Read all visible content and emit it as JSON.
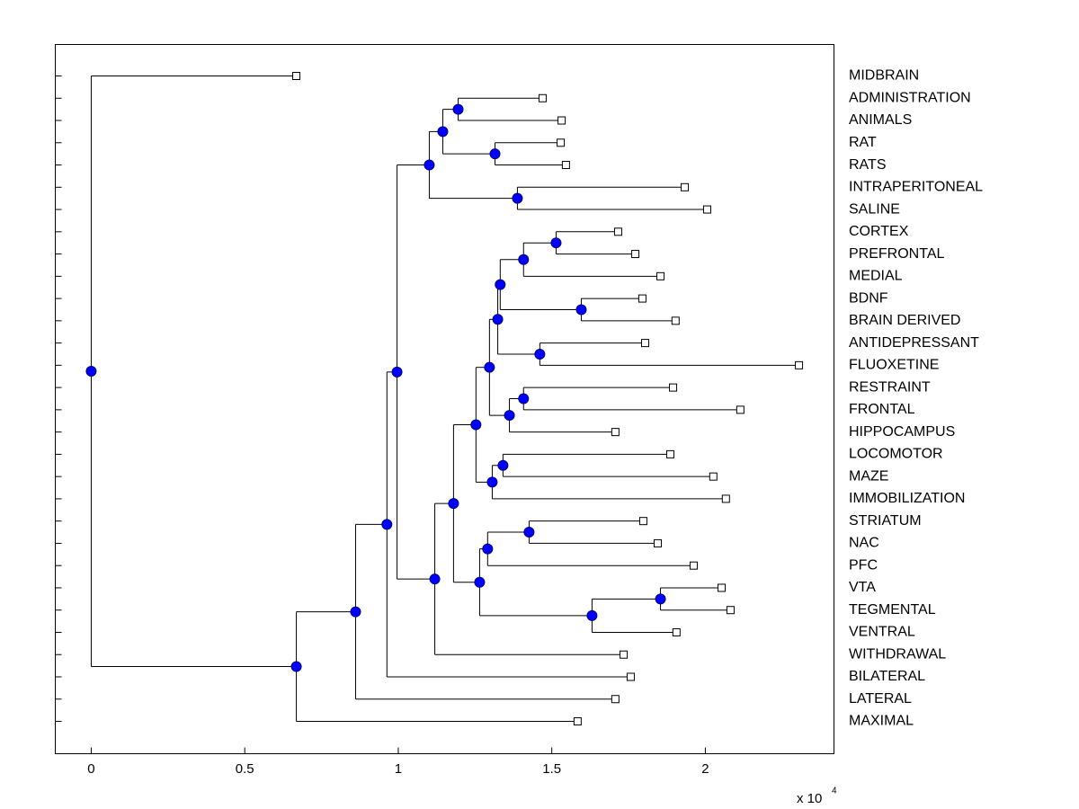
{
  "chart_data": {
    "type": "dendrogram",
    "xlim": [
      -0.117,
      2.419
    ],
    "xticks": [
      0,
      0.5,
      1,
      1.5,
      2
    ],
    "offset_text": "x 10",
    "offset_exponent": "4",
    "node_color": "#0000ff",
    "tree": {
      "x": 0,
      "children": [
        {
          "label": "MIDBRAIN",
          "x": 0.668
        },
        {
          "x": 0.668,
          "children": [
            {
              "x": 0.861,
              "children": [
                {
                  "x": 0.963,
                  "children": [
                    {
                      "x": 0.996,
                      "children": [
                        {
                          "x": 1.101,
                          "children": [
                            {
                              "x": 1.145,
                              "children": [
                                {
                                  "x": 1.195,
                                  "children": [
                                    {
                                      "label": "ADMINISTRATION",
                                      "x": 1.47
                                    },
                                    {
                                      "label": "ANIMALS",
                                      "x": 1.532
                                    }
                                  ]
                                },
                                {
                                  "x": 1.315,
                                  "children": [
                                    {
                                      "label": "RAT",
                                      "x": 1.529
                                    },
                                    {
                                      "label": "RATS",
                                      "x": 1.546
                                    }
                                  ]
                                }
                              ]
                            },
                            {
                              "x": 1.388,
                              "children": [
                                {
                                  "label": "INTRAPERITONEAL",
                                  "x": 1.933
                                },
                                {
                                  "label": "SALINE",
                                  "x": 2.006
                                }
                              ]
                            }
                          ]
                        },
                        {
                          "x": 1.119,
                          "children": [
                            {
                              "x": 1.18,
                              "children": [
                                {
                                  "x": 1.253,
                                  "children": [
                                    {
                                      "x": 1.297,
                                      "children": [
                                        {
                                          "x": 1.324,
                                          "children": [
                                            {
                                              "x": 1.332,
                                              "children": [
                                                {
                                                  "x": 1.408,
                                                  "children": [
                                                    {
                                                      "x": 1.514,
                                                      "children": [
                                                        {
                                                          "label": "CORTEX",
                                                          "x": 1.716
                                                        },
                                                        {
                                                          "label": "PREFRONTAL",
                                                          "x": 1.772
                                                        }
                                                      ]
                                                    },
                                                    {
                                                      "label": "MEDIAL",
                                                      "x": 1.854
                                                    }
                                                  ]
                                                },
                                                {
                                                  "x": 1.596,
                                                  "children": [
                                                    {
                                                      "label": "BDNF",
                                                      "x": 1.795
                                                    },
                                                    {
                                                      "label": "BRAIN DERIVED",
                                                      "x": 1.903
                                                    }
                                                  ]
                                                }
                                              ]
                                            },
                                            {
                                              "x": 1.461,
                                              "children": [
                                                {
                                                  "label": "ANTIDEPRESSANT",
                                                  "x": 1.804
                                                },
                                                {
                                                  "label": "FLUOXETINE",
                                                  "x": 2.305
                                                }
                                              ]
                                            }
                                          ]
                                        },
                                        {
                                          "x": 1.362,
                                          "children": [
                                            {
                                              "x": 1.408,
                                              "children": [
                                                {
                                                  "label": "RESTRAINT",
                                                  "x": 1.895
                                                },
                                                {
                                                  "label": "FRONTAL",
                                                  "x": 2.114
                                                }
                                              ]
                                            },
                                            {
                                              "label": "HIPPOCAMPUS",
                                              "x": 1.707
                                            }
                                          ]
                                        }
                                      ]
                                    },
                                    {
                                      "x": 1.306,
                                      "children": [
                                        {
                                          "x": 1.341,
                                          "children": [
                                            {
                                              "label": "LOCOMOTOR",
                                              "x": 1.886
                                            },
                                            {
                                              "label": "MAZE",
                                              "x": 2.026
                                            }
                                          ]
                                        },
                                        {
                                          "label": "IMMOBILIZATION",
                                          "x": 2.067
                                        }
                                      ]
                                    }
                                  ]
                                },
                                {
                                  "x": 1.265,
                                  "children": [
                                    {
                                      "x": 1.291,
                                      "children": [
                                        {
                                          "x": 1.426,
                                          "children": [
                                            {
                                              "label": "STRIATUM",
                                              "x": 1.798
                                            },
                                            {
                                              "label": "NAC",
                                              "x": 1.845
                                            }
                                          ]
                                        },
                                        {
                                          "label": "PFC",
                                          "x": 1.962
                                        }
                                      ]
                                    },
                                    {
                                      "x": 1.631,
                                      "children": [
                                        {
                                          "x": 1.854,
                                          "children": [
                                            {
                                              "label": "VTA",
                                              "x": 2.053
                                            },
                                            {
                                              "label": "TEGMENTAL",
                                              "x": 2.082
                                            }
                                          ]
                                        },
                                        {
                                          "label": "VENTRAL",
                                          "x": 1.906
                                        }
                                      ]
                                    }
                                  ]
                                }
                              ]
                            },
                            {
                              "label": "WITHDRAWAL",
                              "x": 1.734
                            }
                          ]
                        }
                      ]
                    },
                    {
                      "label": "BILATERAL",
                      "x": 1.757
                    }
                  ]
                },
                {
                  "label": "LATERAL",
                  "x": 1.707
                }
              ]
            },
            {
              "label": "MAXIMAL",
              "x": 1.584
            }
          ]
        }
      ]
    }
  }
}
